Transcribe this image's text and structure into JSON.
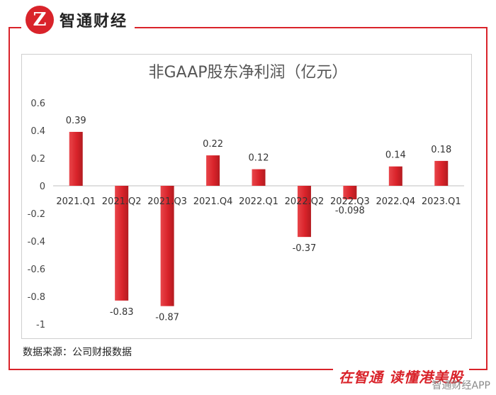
{
  "header": {
    "brand": "智通财经",
    "logo_letter": "Z"
  },
  "footer": {
    "source": "数据来源：公司财报数据",
    "slogan": "在智通 读懂港美股",
    "watermark": "智通财经APP"
  },
  "colors": {
    "brand_red": "#d9232a",
    "bar_light": "#e8454a",
    "bar_dark": "#b31b20"
  },
  "chart_data": {
    "type": "bar",
    "title": "非GAAP股东净利润（亿元）",
    "categories": [
      "2021.Q1",
      "2021.Q2",
      "2021.Q3",
      "2021.Q4",
      "2022.Q1",
      "2022.Q2",
      "2022.Q3",
      "2022.Q4",
      "2023.Q1"
    ],
    "values": [
      0.39,
      -0.83,
      -0.87,
      0.22,
      0.12,
      -0.37,
      -0.098,
      0.14,
      0.18
    ],
    "value_labels": [
      "0.39",
      "-0.83",
      "-0.87",
      "0.22",
      "0.12",
      "-0.37",
      "-0.098",
      "0.14",
      "0.18"
    ],
    "ylim": [
      -1,
      0.6
    ],
    "yticks": [
      0.6,
      0.4,
      0.2,
      0,
      -0.2,
      -0.4,
      -0.6,
      -0.8,
      -1
    ],
    "ytick_labels": [
      "0.6",
      "0.4",
      "0.2",
      "0",
      "-0.2",
      "-0.4",
      "-0.6",
      "-0.8",
      "-1"
    ],
    "grid": false,
    "legend": "none"
  }
}
